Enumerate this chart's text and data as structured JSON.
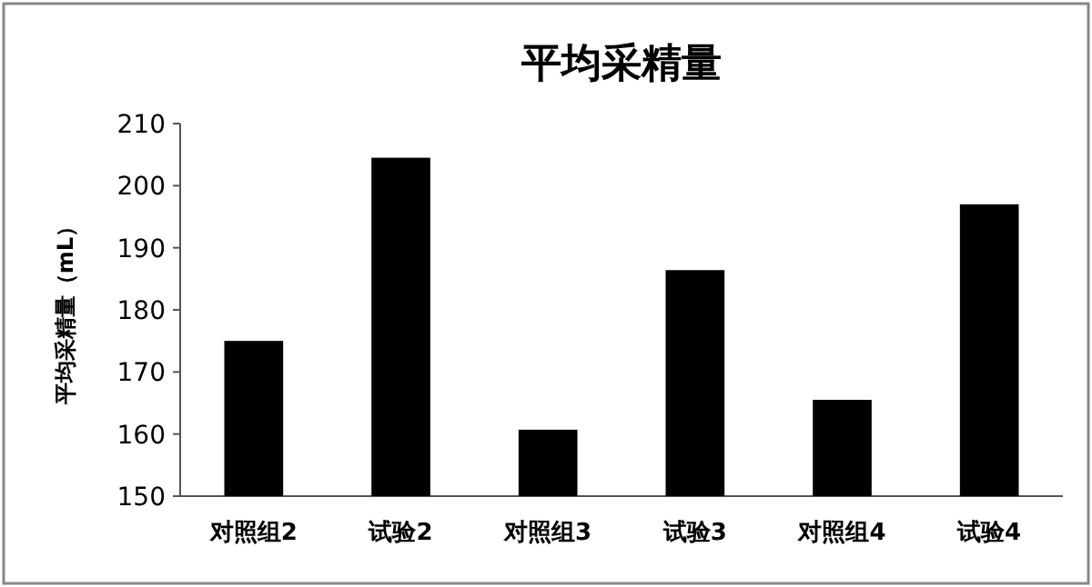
{
  "chart_data": {
    "type": "bar",
    "title": "平均采精量",
    "ylabel": "平均采精量（mL）",
    "categories": [
      "对照组2",
      "试验2",
      "对照组3",
      "试验3",
      "对照组4",
      "试验4"
    ],
    "values": [
      175,
      204.5,
      160.7,
      186.4,
      165.5,
      197
    ],
    "color": "#000000",
    "ylim": [
      150,
      210
    ],
    "yticks": [
      150,
      160,
      170,
      180,
      190,
      200,
      210
    ],
    "grid": false
  }
}
